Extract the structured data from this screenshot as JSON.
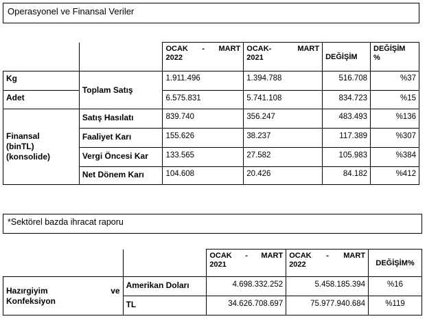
{
  "section1": {
    "title": "Operasyonel ve Finansal Veriler",
    "headers": {
      "p2022": [
        "OCAK",
        "-",
        "MART",
        "2022"
      ],
      "p2021": [
        "OCAK-",
        "",
        "MART",
        "2021"
      ],
      "change": "DEĞİŞİM",
      "change_pct": [
        "DEĞİŞİM",
        "%"
      ]
    },
    "rows": [
      {
        "group": "Kg",
        "label": "Toplam Satış",
        "v2022": "1.911.496",
        "v2021": "1.394.788",
        "change": "516.708",
        "pct": "%37"
      },
      {
        "group": "Adet",
        "label": "",
        "v2022": "6.575.831",
        "v2021": "5.741.108",
        "change": "834.723",
        "pct": "%15"
      },
      {
        "group": "Finansal (binTL) (konsolide)",
        "label": "Satış Hasılatı",
        "v2022": "839.740",
        "v2021": "356.247",
        "change": "483.493",
        "pct": "%136"
      },
      {
        "group": "",
        "label": "Faaliyet Karı",
        "v2022": "155.626",
        "v2021": "38.237",
        "change": "117.389",
        "pct": "%307"
      },
      {
        "group": "",
        "label": "Vergi Öncesi Kar",
        "v2022": "133.565",
        "v2021": "27.582",
        "change": "105.983",
        "pct": "%384"
      },
      {
        "group": "",
        "label": "Net Dönem Karı",
        "v2022": "104.608",
        "v2021": "20.426",
        "change": "84.182",
        "pct": "%412"
      }
    ],
    "group_lines": {
      "kg": "Kg",
      "adet": "Adet",
      "fin1": "Finansal",
      "fin2": "(binTL)",
      "fin3": "(konsolide)"
    }
  },
  "section2": {
    "title": "*Sektörel bazda ihracat raporu",
    "headers": {
      "p2021": [
        "OCAK",
        "-",
        "MART",
        "2021"
      ],
      "p2022": [
        "OCAK",
        "-",
        "MART",
        "2022"
      ],
      "change": "DEĞİŞİM%"
    },
    "group_line1a": "Hazırgiyim",
    "group_line1b": "ve",
    "group_line2": "Konfeksiyon",
    "rows": [
      {
        "label": "Amerikan Doları",
        "v2021": "4.698.332.252",
        "v2022": "5.458.185.394",
        "pct": "%16"
      },
      {
        "label": "TL",
        "v2021": "34.626.708.697",
        "v2022": "75.977.940.684",
        "pct": "%119"
      }
    ]
  }
}
